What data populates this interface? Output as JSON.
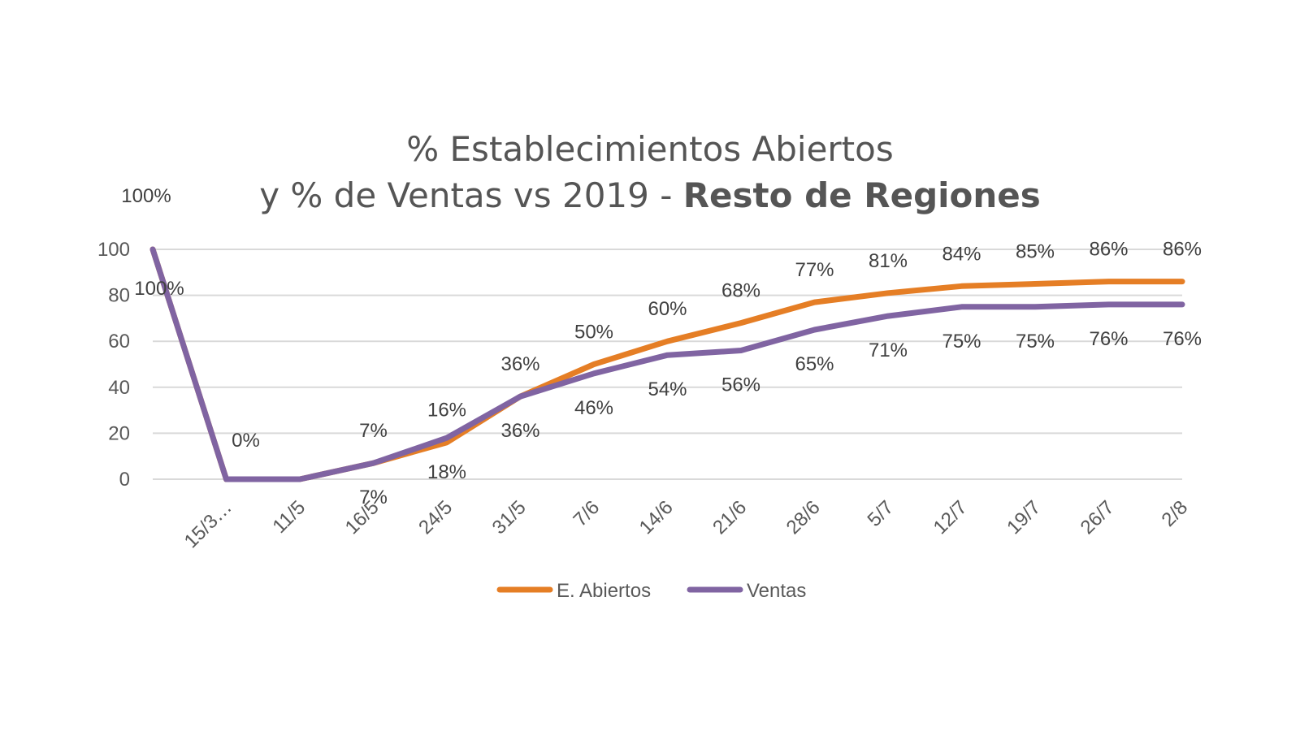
{
  "chart_data": {
    "type": "line",
    "title_line1": "% Establecimientos Abiertos",
    "title_line2_regular": "y % de Ventas vs 2019 - ",
    "title_line2_bold": "Resto de Regiones",
    "categories": [
      "",
      "15/3…",
      "11/5",
      "16/5",
      "24/5",
      "31/5",
      "7/6",
      "14/6",
      "21/6",
      "28/6",
      "5/7",
      "12/7",
      "19/7",
      "26/7",
      "2/8"
    ],
    "yticks": [
      "0",
      "20",
      "40",
      "60",
      "80",
      "100"
    ],
    "ylim": [
      0,
      100
    ],
    "grid": true,
    "legend_position": "bottom",
    "series": [
      {
        "name": "E. Abiertos",
        "color": "#E57E25",
        "values": [
          100,
          0,
          0,
          7,
          16,
          36,
          50,
          60,
          68,
          77,
          81,
          84,
          85,
          86,
          86
        ],
        "labels": [
          "100%",
          "0%",
          "",
          "7%",
          "16%",
          "36%",
          "50%",
          "60%",
          "68%",
          "77%",
          "81%",
          "84%",
          "85%",
          "86%",
          "86%"
        ],
        "label_position": "above"
      },
      {
        "name": "Ventas",
        "color": "#8064A2",
        "values": [
          100,
          0,
          0,
          7,
          18,
          36,
          46,
          54,
          56,
          65,
          71,
          75,
          75,
          76,
          76
        ],
        "labels": [
          "100%",
          "",
          "",
          "7%",
          "18%",
          "36%",
          "46%",
          "54%",
          "56%",
          "65%",
          "71%",
          "75%",
          "75%",
          "76%",
          "76%"
        ],
        "label_position": "below"
      }
    ]
  }
}
